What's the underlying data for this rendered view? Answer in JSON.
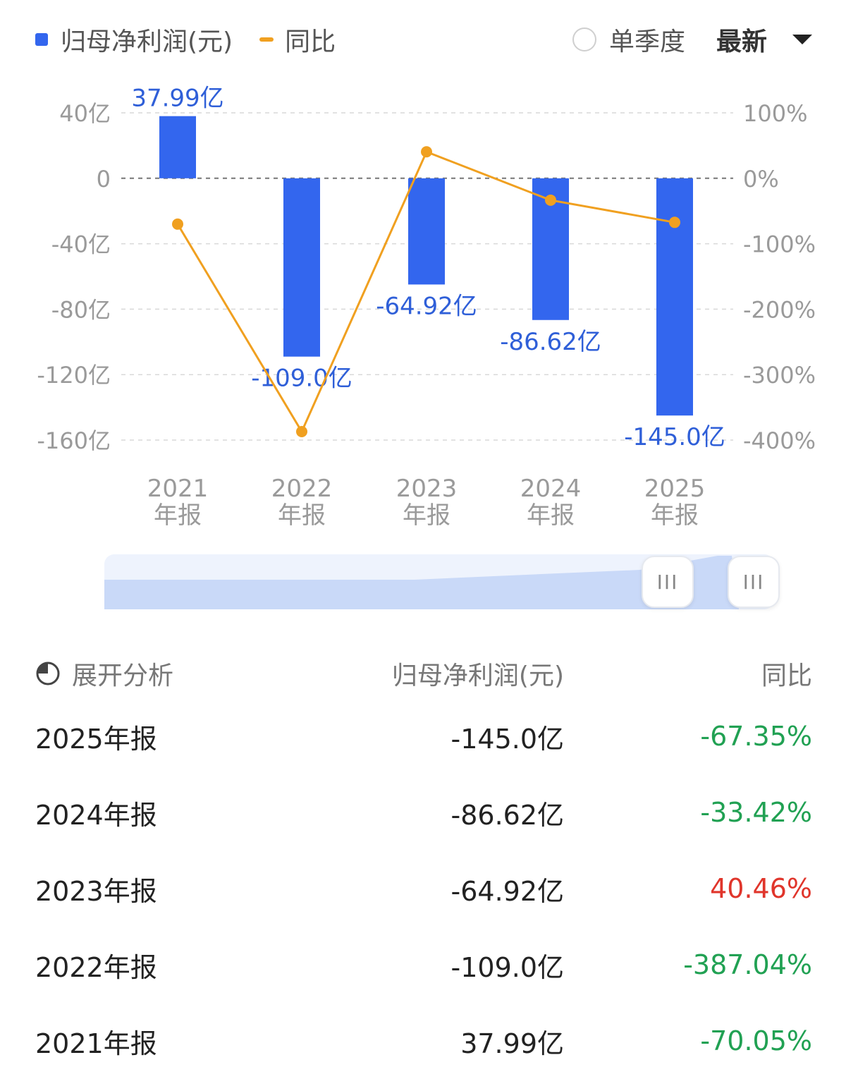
{
  "legend": {
    "bar_label": "归母净利润(元)",
    "line_label": "同比"
  },
  "controls": {
    "single_quarter_label": "单季度",
    "select_value": "最新"
  },
  "colors": {
    "bar": "#3366ee",
    "line": "#f0a020",
    "down": "#21a153",
    "up": "#e0352b",
    "grid": "#cfcfcf",
    "axis_text": "#9a9a9a"
  },
  "chart_data": {
    "type": "bar",
    "categories": [
      "2021年报",
      "2022年报",
      "2023年报",
      "2024年报",
      "2025年报"
    ],
    "category_lines": [
      [
        "2021",
        "年报"
      ],
      [
        "2022",
        "年报"
      ],
      [
        "2023",
        "年报"
      ],
      [
        "2024",
        "年报"
      ],
      [
        "2025",
        "年报"
      ]
    ],
    "series": [
      {
        "name": "归母净利润(元)",
        "type": "bar",
        "values": [
          37.99,
          -109.0,
          -64.92,
          -86.62,
          -145.0
        ],
        "labels": [
          "37.99亿",
          "-109.0亿",
          "-64.92亿",
          "-86.62亿",
          "-145.0亿"
        ]
      },
      {
        "name": "同比",
        "type": "line",
        "axis": "right",
        "values": [
          -70.05,
          -387.04,
          40.46,
          -33.42,
          -67.35
        ]
      }
    ],
    "y_left": {
      "ticks": [
        40,
        0,
        -40,
        -80,
        -120,
        -160
      ],
      "tick_labels": [
        "40亿",
        "0",
        "-40亿",
        "-80亿",
        "-120亿",
        "-160亿"
      ],
      "range": [
        -160,
        40
      ]
    },
    "y_right": {
      "ticks": [
        100,
        0,
        -100,
        -200,
        -300,
        -400
      ],
      "tick_labels": [
        "100%",
        "0%",
        "-100%",
        "-200%",
        "-300%",
        "-400%"
      ],
      "range": [
        -400,
        100
      ]
    },
    "grid": true
  },
  "slider": {
    "handle_glyph": "III"
  },
  "table": {
    "expand_label": "展开分析",
    "col_value": "归母净利润(元)",
    "col_yoy": "同比",
    "rows": [
      {
        "period": "2025年报",
        "value": "-145.0亿",
        "yoy": "-67.35%",
        "trend": "down"
      },
      {
        "period": "2024年报",
        "value": "-86.62亿",
        "yoy": "-33.42%",
        "trend": "down"
      },
      {
        "period": "2023年报",
        "value": "-64.92亿",
        "yoy": "40.46%",
        "trend": "up"
      },
      {
        "period": "2022年报",
        "value": "-109.0亿",
        "yoy": "-387.04%",
        "trend": "down"
      },
      {
        "period": "2021年报",
        "value": "37.99亿",
        "yoy": "-70.05%",
        "trend": "down"
      }
    ]
  }
}
